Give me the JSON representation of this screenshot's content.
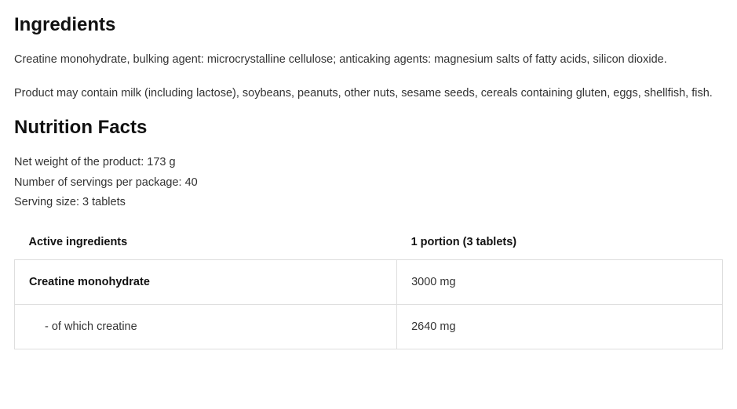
{
  "ingredients": {
    "heading": "Ingredients",
    "text1": "Creatine monohydrate, bulking agent: microcrystalline cellulose; anticaking agents: magnesium salts of fatty acids, silicon dioxide.",
    "text2": "Product may contain milk (including lactose), soybeans, peanuts, other nuts, sesame seeds, cereals containing gluten, eggs, shellfish, fish."
  },
  "nutrition": {
    "heading": "Nutrition Facts",
    "meta": {
      "net_weight": "Net weight of the product: 173 g",
      "servings": "Number of servings per package: 40",
      "serving_size": "Serving size: 3 tablets"
    },
    "table": {
      "headers": {
        "col1": "Active ingredients",
        "col2": "1 portion (3 tablets)"
      },
      "rows": {
        "r0": {
          "name": "Creatine monohydrate",
          "value": "3000 mg"
        },
        "r1": {
          "name": "- of which creatine",
          "value": "2640 mg"
        }
      }
    }
  }
}
